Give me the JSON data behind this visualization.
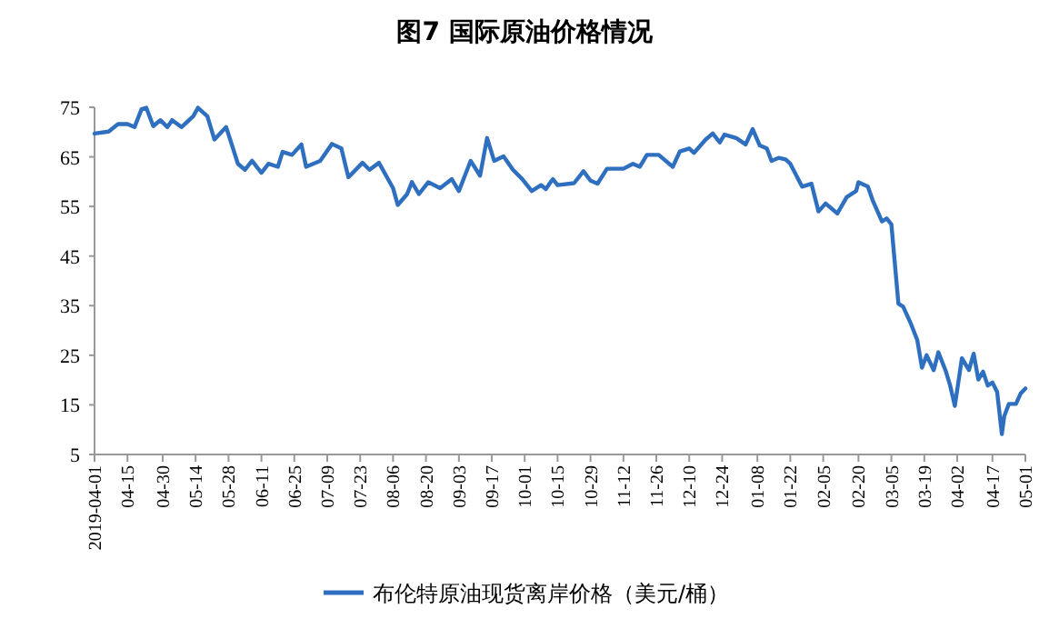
{
  "chart_data": {
    "type": "line",
    "title": "图7  国际原油价格情况",
    "legend": "bottom",
    "grid": false,
    "marker": "none",
    "line_style": "solid",
    "xlim": [
      "2019-04-01",
      "2020-05-01"
    ],
    "xticks": [
      {
        "value": "2019-04-01",
        "label": "2019-04-01"
      },
      {
        "value": "2019-04-15",
        "label": "04-15"
      },
      {
        "value": "2019-04-30",
        "label": "04-30"
      },
      {
        "value": "2019-05-14",
        "label": "05-14"
      },
      {
        "value": "2019-05-28",
        "label": "05-28"
      },
      {
        "value": "2019-06-11",
        "label": "06-11"
      },
      {
        "value": "2019-06-25",
        "label": "06-25"
      },
      {
        "value": "2019-07-09",
        "label": "07-09"
      },
      {
        "value": "2019-07-23",
        "label": "07-23"
      },
      {
        "value": "2019-08-06",
        "label": "08-06"
      },
      {
        "value": "2019-08-20",
        "label": "08-20"
      },
      {
        "value": "2019-09-03",
        "label": "09-03"
      },
      {
        "value": "2019-09-17",
        "label": "09-17"
      },
      {
        "value": "2019-10-01",
        "label": "10-01"
      },
      {
        "value": "2019-10-15",
        "label": "10-15"
      },
      {
        "value": "2019-10-29",
        "label": "10-29"
      },
      {
        "value": "2019-11-12",
        "label": "11-12"
      },
      {
        "value": "2019-11-26",
        "label": "11-26"
      },
      {
        "value": "2019-12-10",
        "label": "12-10"
      },
      {
        "value": "2019-12-24",
        "label": "12-24"
      },
      {
        "value": "2020-01-08",
        "label": "01-08"
      },
      {
        "value": "2020-01-22",
        "label": "01-22"
      },
      {
        "value": "2020-02-05",
        "label": "02-05"
      },
      {
        "value": "2020-02-20",
        "label": "02-20"
      },
      {
        "value": "2020-03-05",
        "label": "03-05"
      },
      {
        "value": "2020-03-19",
        "label": "03-19"
      },
      {
        "value": "2020-04-02",
        "label": "04-02"
      },
      {
        "value": "2020-04-17",
        "label": "04-17"
      },
      {
        "value": "2020-05-01",
        "label": "05-01"
      }
    ],
    "ylim": [
      5,
      75
    ],
    "yticks": [
      5,
      15,
      25,
      35,
      45,
      55,
      65,
      75
    ],
    "series": [
      {
        "name": "布伦特原油现货离岸价格（美元/桶）",
        "color": "#2f6fbf",
        "x": [
          "2019-04-01",
          "2019-04-07",
          "2019-04-11",
          "2019-04-15",
          "2019-04-18",
          "2019-04-21",
          "2019-04-23",
          "2019-04-26",
          "2019-04-29",
          "2019-05-02",
          "2019-05-04",
          "2019-05-08",
          "2019-05-13",
          "2019-05-15",
          "2019-05-19",
          "2019-05-22",
          "2019-05-27",
          "2019-06-01",
          "2019-06-04",
          "2019-06-07",
          "2019-06-11",
          "2019-06-14",
          "2019-06-18",
          "2019-06-20",
          "2019-06-24",
          "2019-06-28",
          "2019-06-30",
          "2019-07-06",
          "2019-07-11",
          "2019-07-15",
          "2019-07-18",
          "2019-07-24",
          "2019-07-27",
          "2019-07-31",
          "2019-08-06",
          "2019-08-08",
          "2019-08-12",
          "2019-08-14",
          "2019-08-17",
          "2019-08-21",
          "2019-08-26",
          "2019-08-31",
          "2019-09-03",
          "2019-09-08",
          "2019-09-12",
          "2019-09-15",
          "2019-09-18",
          "2019-09-22",
          "2019-09-26",
          "2019-09-30",
          "2019-10-04",
          "2019-10-08",
          "2019-10-10",
          "2019-10-12",
          "2019-10-13",
          "2019-10-15",
          "2019-10-22",
          "2019-10-26",
          "2019-10-29",
          "2019-11-01",
          "2019-11-05",
          "2019-11-08",
          "2019-11-12",
          "2019-11-16",
          "2019-11-19",
          "2019-11-22",
          "2019-11-27",
          "2019-12-03",
          "2019-12-06",
          "2019-12-10",
          "2019-12-12",
          "2019-12-17",
          "2019-12-20",
          "2019-12-23",
          "2019-12-25",
          "2019-12-30",
          "2020-01-03",
          "2020-01-06",
          "2020-01-09",
          "2020-01-12",
          "2020-01-14",
          "2020-01-17",
          "2020-01-20",
          "2020-01-22",
          "2020-01-27",
          "2020-01-31",
          "2020-02-03",
          "2020-02-06",
          "2020-02-11",
          "2020-02-15",
          "2020-02-19",
          "2020-02-20",
          "2020-02-24",
          "2020-02-26",
          "2020-03-01",
          "2020-03-03",
          "2020-03-05",
          "2020-03-08",
          "2020-03-10",
          "2020-03-13",
          "2020-03-16",
          "2020-03-18",
          "2020-03-20",
          "2020-03-23",
          "2020-03-25",
          "2020-03-28",
          "2020-03-30",
          "2020-04-01",
          "2020-04-04",
          "2020-04-07",
          "2020-04-09",
          "2020-04-11",
          "2020-04-13",
          "2020-04-15",
          "2020-04-17",
          "2020-04-19",
          "2020-04-21",
          "2020-04-22",
          "2020-04-24",
          "2020-04-27",
          "2020-04-29",
          "2020-05-01"
        ],
        "values": [
          69.7,
          70.1,
          71.6,
          71.6,
          71.0,
          74.6,
          74.9,
          71.2,
          72.4,
          71.0,
          72.4,
          71.0,
          73.2,
          74.9,
          73.2,
          68.5,
          71.0,
          63.6,
          62.4,
          64.2,
          61.8,
          63.6,
          63.0,
          66.0,
          65.4,
          67.5,
          63.0,
          64.2,
          67.6,
          66.7,
          60.9,
          63.8,
          62.4,
          63.8,
          58.7,
          55.3,
          57.5,
          59.9,
          57.5,
          59.9,
          58.7,
          60.5,
          58.1,
          64.2,
          61.2,
          68.8,
          64.2,
          65.1,
          62.4,
          60.5,
          58.1,
          59.3,
          58.5,
          59.9,
          60.5,
          59.3,
          59.7,
          62.1,
          60.2,
          59.6,
          62.6,
          62.6,
          62.6,
          63.6,
          63.0,
          65.4,
          65.4,
          63.0,
          66.1,
          66.7,
          65.8,
          68.5,
          69.7,
          67.9,
          69.5,
          68.8,
          67.5,
          70.6,
          67.3,
          66.7,
          64.2,
          64.8,
          64.5,
          63.6,
          59.0,
          59.6,
          54.0,
          55.6,
          53.6,
          56.9,
          58.1,
          59.9,
          59.0,
          56.3,
          52.0,
          52.6,
          51.4,
          35.4,
          34.8,
          31.7,
          28.1,
          22.5,
          25.0,
          22.0,
          25.6,
          22.0,
          18.9,
          14.8,
          24.4,
          22.0,
          25.3,
          20.1,
          21.7,
          18.9,
          19.5,
          17.6,
          9.1,
          12.7,
          15.2,
          15.2,
          17.3,
          18.3
        ]
      }
    ]
  }
}
